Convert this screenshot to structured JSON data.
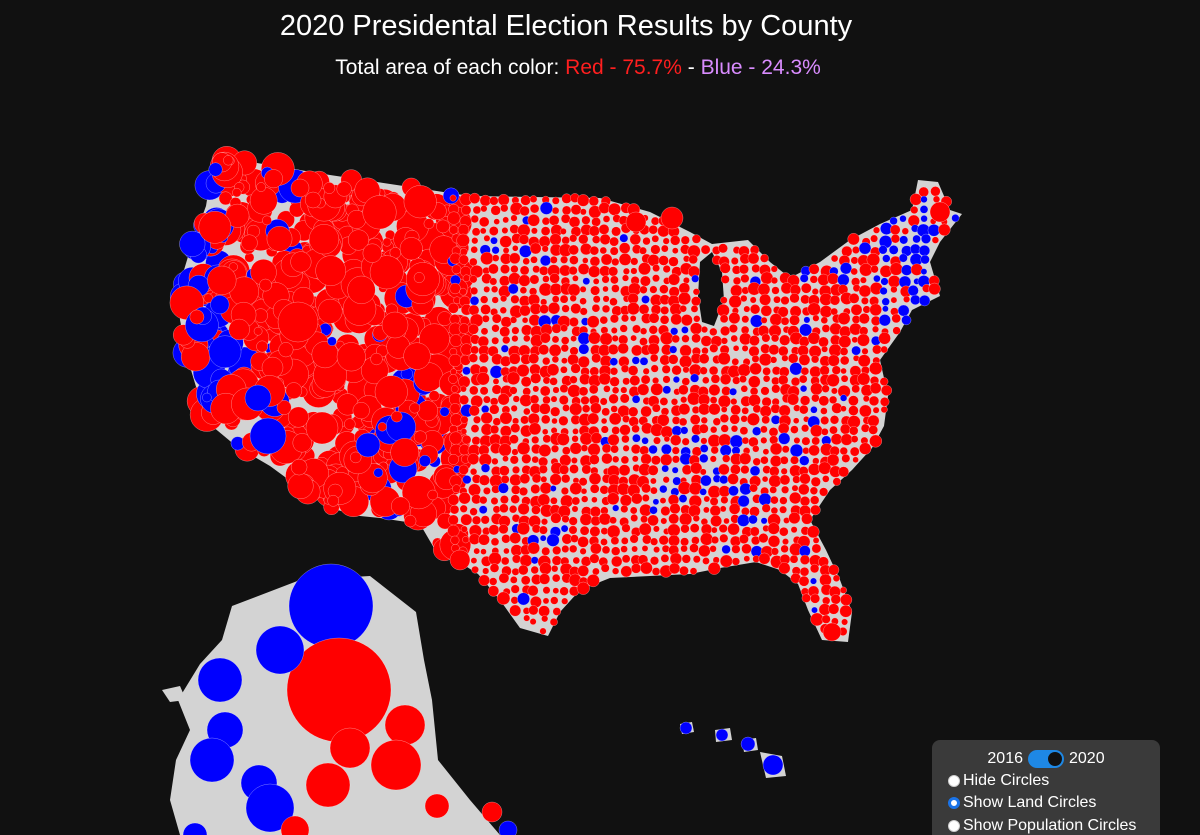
{
  "header": {
    "title": "2020 Presidental Election Results by County",
    "subtitle_prefix": "Total area of each color: ",
    "subtitle_red": "Red - 75.7%",
    "subtitle_sep": " - ",
    "subtitle_blue": "Blue - 24.3%"
  },
  "colors": {
    "background": "#111111",
    "land": "#d3d3d3",
    "red": "#ff0000",
    "blue": "#0000ff",
    "subtitle_blue": "#d98cff",
    "toggle_accent": "#1e88e5"
  },
  "controls": {
    "year_left": "2016",
    "year_right": "2020",
    "toggle_state": "2020",
    "options": [
      {
        "label": "Hide Circles",
        "checked": false
      },
      {
        "label": "Show Land Circles",
        "checked": true
      },
      {
        "label": "Show Population Circles",
        "checked": false
      }
    ]
  },
  "map": {
    "red_share_percent": 75.7,
    "blue_share_percent": 24.3
  }
}
